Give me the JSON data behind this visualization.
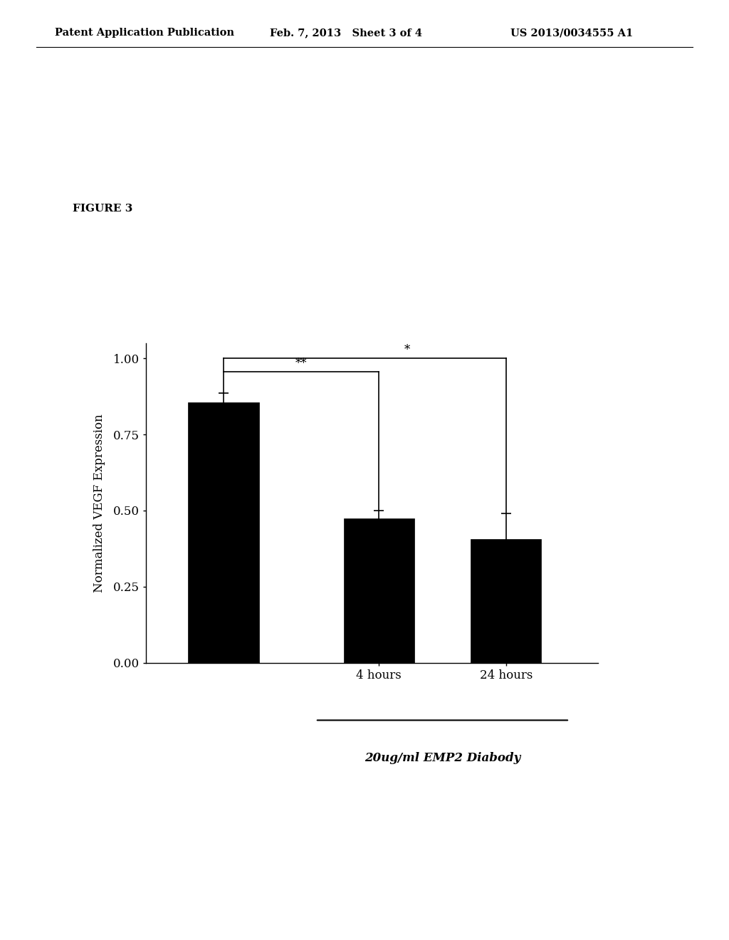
{
  "header_left": "Patent Application Publication",
  "header_center": "Feb. 7, 2013   Sheet 3 of 4",
  "header_right": "US 2013/0034555 A1",
  "figure_label": "FIGURE 3",
  "bar_values": [
    0.855,
    0.475,
    0.405
  ],
  "bar_errors": [
    0.03,
    0.025,
    0.085
  ],
  "bar_colors": [
    "#000000",
    "#000000",
    "#000000"
  ],
  "ylabel": "Normalized VEGF Expression",
  "xlabel_group": "20ug/ml EMP2 Diabody",
  "ylim": [
    0.0,
    1.05
  ],
  "yticks": [
    0.0,
    0.25,
    0.5,
    0.75,
    1.0
  ],
  "ytick_labels": [
    "0.00",
    "0.25",
    "0.50",
    "0.75",
    "1.00"
  ],
  "sig_line1_label": "**",
  "sig_line2_label": "*",
  "background_color": "#ffffff",
  "bar_width": 0.5,
  "bar_positions": [
    1.0,
    2.1,
    3.0
  ],
  "x_tick_positions": [
    2.1,
    3.0
  ],
  "x_tick_labels": [
    "4 hours",
    "24 hours"
  ]
}
